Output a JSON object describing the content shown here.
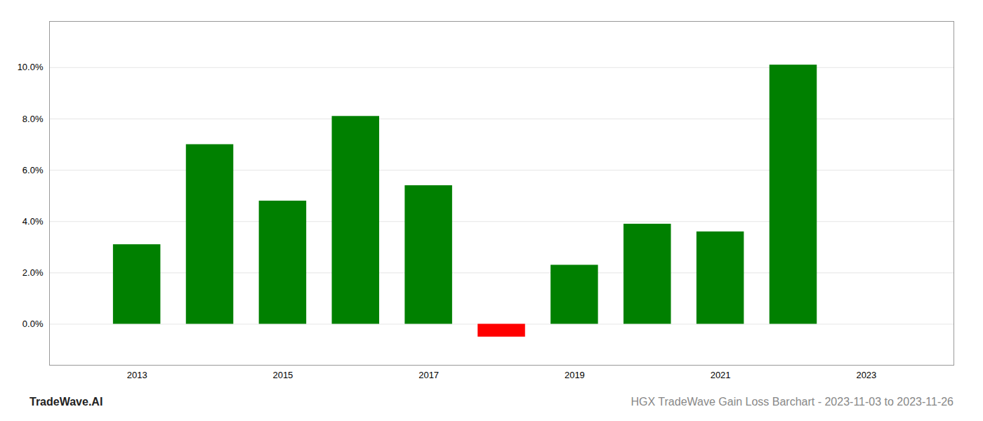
{
  "chart_data": {
    "type": "bar",
    "title": "HGX TradeWave Gain Loss Barchart - 2023-11-03 to 2023-11-26",
    "annotations": [
      "TradeWave.AI"
    ],
    "x": [
      2013,
      2014,
      2015,
      2016,
      2017,
      2018,
      2019,
      2020,
      2021,
      2022
    ],
    "values": [
      0.031,
      0.07,
      0.048,
      0.081,
      0.054,
      -0.005,
      0.023,
      0.039,
      0.036,
      0.101
    ],
    "colors": [
      "#008000",
      "#008000",
      "#008000",
      "#008000",
      "#008000",
      "#ff0000",
      "#008000",
      "#008000",
      "#008000",
      "#008000"
    ],
    "xlim": [
      2011.8,
      2024.2
    ],
    "xticks": [
      2013,
      2015,
      2017,
      2019,
      2021,
      2023
    ],
    "ylim": [
      -0.016,
      0.118
    ],
    "yticks": [
      {
        "value": 0.0,
        "label": "0.0%"
      },
      {
        "value": 0.02,
        "label": "2.0%"
      },
      {
        "value": 0.04,
        "label": "4.0%"
      },
      {
        "value": 0.06,
        "label": "6.0%"
      },
      {
        "value": 0.08,
        "label": "8.0%"
      },
      {
        "value": 0.1,
        "label": "10.0%"
      }
    ],
    "grid": "y"
  }
}
